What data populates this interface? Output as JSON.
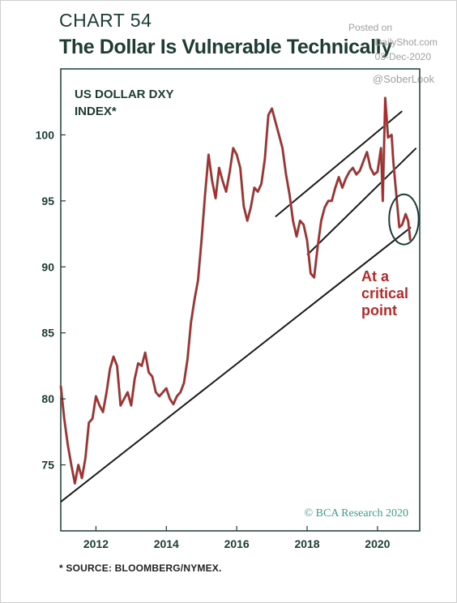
{
  "header": {
    "chart_number": "CHART 54",
    "title": "The Dollar Is Vulnerable Technically"
  },
  "watermark": {
    "posted_on": "Posted on",
    "site": "DailyShot.com",
    "date": "03-Dec-2020",
    "handle": "@SoberLook"
  },
  "footer": {
    "source": "* SOURCE: BLOOMBERG/NYMEX."
  },
  "colors": {
    "series_red": "#b5272a",
    "series_teal": "#5fb3a1",
    "frame": "#1e3b34",
    "annotation": "#b32a2a"
  },
  "chart_data": {
    "type": "line",
    "series_label_lines": [
      "US DOLLAR DXY",
      "INDEX*"
    ],
    "annotation_lines": [
      "At a",
      "critical",
      "point"
    ],
    "credit": "© BCA Research 2020",
    "x_ticks": [
      "2012",
      "2014",
      "2016",
      "2018",
      "2020"
    ],
    "x_tick_values": [
      2012,
      2014,
      2016,
      2018,
      2020
    ],
    "y_ticks": [
      "75",
      "80",
      "85",
      "90",
      "95",
      "100"
    ],
    "y_tick_values": [
      75,
      80,
      85,
      90,
      95,
      100
    ],
    "xlim": [
      2011.0,
      2021.2
    ],
    "ylim": [
      70.0,
      105.0
    ],
    "grid": false,
    "series": [
      {
        "values": [
          [
            2011.0,
            81.0
          ],
          [
            2011.1,
            78.5
          ],
          [
            2011.2,
            76.5
          ],
          [
            2011.3,
            75.0
          ],
          [
            2011.4,
            73.6
          ],
          [
            2011.5,
            75.0
          ],
          [
            2011.6,
            74.0
          ],
          [
            2011.7,
            75.5
          ],
          [
            2011.8,
            78.2
          ],
          [
            2011.9,
            78.5
          ],
          [
            2012.0,
            80.2
          ],
          [
            2012.1,
            79.5
          ],
          [
            2012.2,
            79.0
          ],
          [
            2012.3,
            80.5
          ],
          [
            2012.4,
            82.3
          ],
          [
            2012.5,
            83.2
          ],
          [
            2012.6,
            82.5
          ],
          [
            2012.7,
            79.5
          ],
          [
            2012.8,
            80.0
          ],
          [
            2012.9,
            80.5
          ],
          [
            2013.0,
            79.5
          ],
          [
            2013.1,
            81.5
          ],
          [
            2013.2,
            82.7
          ],
          [
            2013.3,
            82.5
          ],
          [
            2013.4,
            83.5
          ],
          [
            2013.5,
            82.0
          ],
          [
            2013.6,
            81.7
          ],
          [
            2013.7,
            80.5
          ],
          [
            2013.8,
            80.2
          ],
          [
            2013.9,
            80.5
          ],
          [
            2014.0,
            80.8
          ],
          [
            2014.1,
            80.0
          ],
          [
            2014.2,
            79.6
          ],
          [
            2014.3,
            80.2
          ],
          [
            2014.4,
            80.5
          ],
          [
            2014.5,
            81.2
          ],
          [
            2014.6,
            83.0
          ],
          [
            2014.7,
            85.8
          ],
          [
            2014.8,
            87.5
          ],
          [
            2014.9,
            89.0
          ],
          [
            2015.0,
            92.0
          ],
          [
            2015.1,
            95.5
          ],
          [
            2015.2,
            98.5
          ],
          [
            2015.3,
            96.5
          ],
          [
            2015.4,
            95.2
          ],
          [
            2015.5,
            97.5
          ],
          [
            2015.6,
            96.5
          ],
          [
            2015.7,
            95.7
          ],
          [
            2015.8,
            97.2
          ],
          [
            2015.9,
            99.0
          ],
          [
            2016.0,
            98.5
          ],
          [
            2016.1,
            97.5
          ],
          [
            2016.2,
            94.6
          ],
          [
            2016.3,
            93.5
          ],
          [
            2016.4,
            94.5
          ],
          [
            2016.5,
            96.0
          ],
          [
            2016.6,
            95.7
          ],
          [
            2016.7,
            96.3
          ],
          [
            2016.8,
            98.2
          ],
          [
            2016.9,
            101.5
          ],
          [
            2017.0,
            102.0
          ],
          [
            2017.1,
            101.0
          ],
          [
            2017.2,
            100.0
          ],
          [
            2017.3,
            99.0
          ],
          [
            2017.4,
            97.0
          ],
          [
            2017.5,
            95.5
          ],
          [
            2017.6,
            93.5
          ],
          [
            2017.7,
            92.3
          ],
          [
            2017.8,
            93.5
          ],
          [
            2017.9,
            93.2
          ],
          [
            2018.0,
            92.0
          ],
          [
            2018.1,
            89.5
          ],
          [
            2018.2,
            89.2
          ],
          [
            2018.3,
            91.5
          ],
          [
            2018.4,
            93.5
          ],
          [
            2018.5,
            94.5
          ],
          [
            2018.6,
            95.0
          ],
          [
            2018.7,
            95.0
          ],
          [
            2018.8,
            96.0
          ],
          [
            2018.9,
            96.8
          ],
          [
            2019.0,
            96.0
          ],
          [
            2019.1,
            96.7
          ],
          [
            2019.2,
            97.2
          ],
          [
            2019.3,
            97.5
          ],
          [
            2019.4,
            97.0
          ],
          [
            2019.5,
            97.3
          ],
          [
            2019.6,
            98.0
          ],
          [
            2019.7,
            98.7
          ],
          [
            2019.8,
            97.5
          ],
          [
            2019.9,
            97.0
          ],
          [
            2020.0,
            97.2
          ],
          [
            2020.1,
            99.0
          ],
          [
            2020.15,
            95.0
          ],
          [
            2020.22,
            102.8
          ],
          [
            2020.3,
            99.8
          ],
          [
            2020.4,
            100.0
          ],
          [
            2020.45,
            98.0
          ],
          [
            2020.55,
            95.0
          ],
          [
            2020.62,
            93.0
          ],
          [
            2020.7,
            93.2
          ],
          [
            2020.8,
            94.0
          ],
          [
            2020.87,
            93.5
          ],
          [
            2020.93,
            92.0
          ]
        ]
      }
    ],
    "trendlines": [
      {
        "from": [
          2011.0,
          72.2
        ],
        "to": [
          2020.95,
          93.0
        ]
      },
      {
        "from": [
          2017.1,
          93.8
        ],
        "to": [
          2020.7,
          101.8
        ]
      },
      {
        "from": [
          2018.0,
          90.9
        ],
        "to": [
          2021.1,
          99.0
        ]
      }
    ],
    "highlight_ellipse": {
      "center": [
        2020.75,
        93.6
      ],
      "radius": [
        0.42,
        1.9
      ]
    }
  }
}
